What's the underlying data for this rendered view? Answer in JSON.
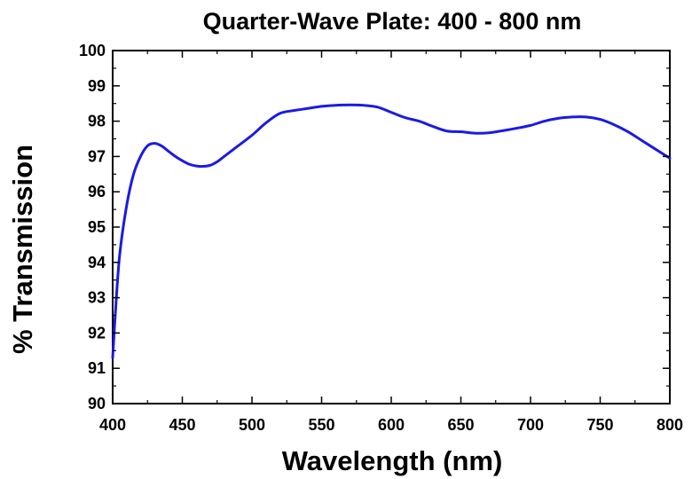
{
  "chart_data": {
    "type": "line",
    "title": "Quarter-Wave Plate: 400 - 800 nm",
    "xlabel": "Wavelength (nm)",
    "ylabel": "% Transmission",
    "xlim": [
      400,
      800
    ],
    "ylim": [
      90,
      100
    ],
    "x_ticks": [
      400,
      450,
      500,
      550,
      600,
      650,
      700,
      750,
      800
    ],
    "y_ticks": [
      90,
      91,
      92,
      93,
      94,
      95,
      96,
      97,
      98,
      99,
      100
    ],
    "x_tick_labels": [
      "400",
      "450",
      "500",
      "550",
      "600",
      "650",
      "700",
      "750",
      "800"
    ],
    "y_tick_labels": [
      "90",
      "91",
      "92",
      "93",
      "94",
      "95",
      "96",
      "97",
      "98",
      "99",
      "100"
    ],
    "grid": false,
    "legend": "none",
    "series": [
      {
        "color": "#1a1ae6",
        "x": [
          400,
          402,
          405,
          410,
          415,
          420,
          425,
          430,
          435,
          440,
          445,
          450,
          455,
          460,
          465,
          470,
          475,
          480,
          490,
          500,
          510,
          520,
          530,
          540,
          550,
          560,
          570,
          580,
          590,
          600,
          610,
          620,
          630,
          640,
          650,
          660,
          670,
          680,
          690,
          700,
          710,
          720,
          730,
          740,
          750,
          760,
          770,
          780,
          790,
          800
        ],
        "y": [
          91.3,
          92.6,
          94.2,
          95.6,
          96.5,
          97.0,
          97.3,
          97.37,
          97.3,
          97.15,
          97.0,
          96.88,
          96.78,
          96.73,
          96.72,
          96.75,
          96.85,
          97.0,
          97.3,
          97.6,
          97.95,
          98.22,
          98.3,
          98.36,
          98.42,
          98.45,
          98.46,
          98.45,
          98.4,
          98.25,
          98.1,
          98.0,
          97.85,
          97.72,
          97.7,
          97.66,
          97.67,
          97.73,
          97.8,
          97.88,
          98.0,
          98.08,
          98.12,
          98.12,
          98.05,
          97.9,
          97.7,
          97.45,
          97.2,
          96.95
        ]
      }
    ]
  }
}
